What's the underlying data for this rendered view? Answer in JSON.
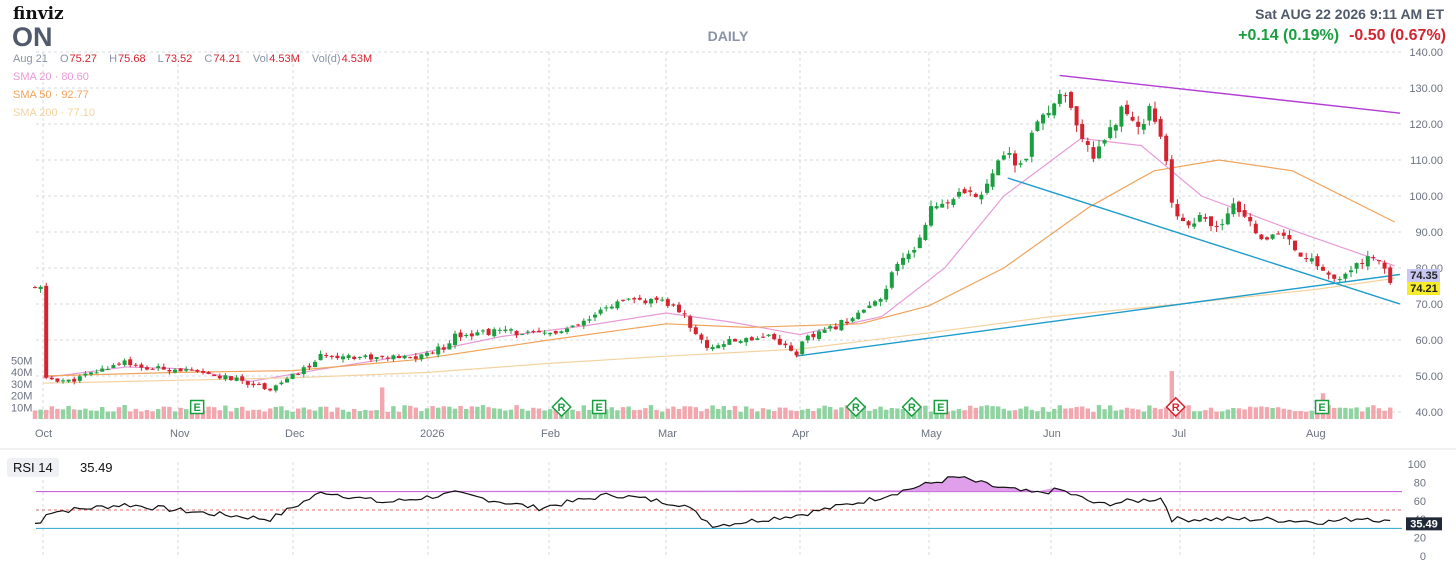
{
  "header": {
    "logo": "finviz",
    "ticker": "ON",
    "period": "DAILY",
    "datetime": "Sat AUG 22 2026 9:11 AM ET",
    "change_1": "+0.14 (0.19%)",
    "change_2": "-0.50 (0.67%)"
  },
  "ohlc": {
    "date": "Aug 21",
    "open_label": "O",
    "open": "75.27",
    "high_label": "H",
    "high": "75.68",
    "low_label": "L",
    "low": "73.52",
    "close_label": "C",
    "close": "74.21",
    "vol_label": "Vol",
    "vol": "4.53M",
    "vold_label": "Vol(d)",
    "vold": "4.53M"
  },
  "sma": [
    {
      "label": "SMA 20",
      "value": "80.60",
      "color": "#e79ad6"
    },
    {
      "label": "SMA 50",
      "value": "92.77",
      "color": "#f0a35a"
    },
    {
      "label": "SMA 200",
      "value": "77.10",
      "color": "#f3d2a0"
    }
  ],
  "colors": {
    "up": "#1a9e3f",
    "down": "#d3242f",
    "vol_up": "#8fd3a0",
    "vol_down": "#f2a7ae",
    "trendline_blue": "#1f9ccc",
    "trendline_purple": "#b33bd6",
    "grid": "#d4d8de",
    "axis_text": "#6b7280",
    "rsi_line": "#111111",
    "rsi_fill": "#d98ee6",
    "price_badge_current": "#f7ec2a",
    "price_badge_other": "#c9c8f5"
  },
  "rsi": {
    "label": "RSI 14",
    "value": "35.49"
  },
  "chart_data": [
    {
      "type": "candlestick",
      "title": "ON",
      "x_tick_labels": [
        "Oct",
        "Nov",
        "Dec",
        "2026",
        "Feb",
        "Mar",
        "Apr",
        "May",
        "Jun",
        "Jul",
        "Aug"
      ],
      "y_tick_labels": [
        "140.00",
        "130.00",
        "120.00",
        "110.00",
        "100.00",
        "90.00",
        "80.00",
        "70.00",
        "60.00",
        "50.00",
        "40.00"
      ],
      "ylim": [
        40,
        140
      ],
      "volume_axis_labels": [
        "50M",
        "40M",
        "30M",
        "20M",
        "10M"
      ],
      "price_badges": [
        "74.35",
        "74.21"
      ],
      "events": [
        {
          "date": "Nov 6",
          "label": "E"
        },
        {
          "date": "Feb 4",
          "label": "R"
        },
        {
          "date": "Feb 13",
          "label": "E"
        },
        {
          "date": "Apr 14",
          "label": "R"
        },
        {
          "date": "Apr 27",
          "label": "R"
        },
        {
          "date": "May 4",
          "label": "E"
        },
        {
          "date": "Jun 30",
          "label": "R"
        },
        {
          "date": "Aug 3",
          "label": "E"
        }
      ],
      "series": [
        {
          "name": "SMA 20",
          "points": [
            [
              "Oct 1",
              49.5
            ],
            [
              "Oct 20",
              52.5
            ],
            [
              "Nov 3",
              52.0
            ],
            [
              "Nov 20",
              48.5
            ],
            [
              "Dec 8",
              52.0
            ],
            [
              "Dec 29",
              56.0
            ],
            [
              "Jan 20",
              61.0
            ],
            [
              "Feb 10",
              64.0
            ],
            [
              "Mar 1",
              67.5
            ],
            [
              "Mar 16",
              65.0
            ],
            [
              "Apr 1",
              61.5
            ],
            [
              "Apr 20",
              66.5
            ],
            [
              "May 5",
              80.0
            ],
            [
              "May 20",
              100.0
            ],
            [
              "Jun 8",
              116.0
            ],
            [
              "Jun 22",
              114.0
            ],
            [
              "Jul 6",
              100.0
            ],
            [
              "Jul 27",
              90.5
            ],
            [
              "Aug 21",
              80.6
            ]
          ]
        },
        {
          "name": "SMA 50",
          "points": [
            [
              "Oct 1",
              50.0
            ],
            [
              "Nov 1",
              51.0
            ],
            [
              "Dec 1",
              51.5
            ],
            [
              "Dec 29",
              54.5
            ],
            [
              "Feb 1",
              60.0
            ],
            [
              "Mar 1",
              64.5
            ],
            [
              "Mar 20",
              63.5
            ],
            [
              "Apr 15",
              64.5
            ],
            [
              "May 1",
              69.5
            ],
            [
              "May 20",
              80.0
            ],
            [
              "Jun 10",
              97.0
            ],
            [
              "Jun 25",
              107.0
            ],
            [
              "Jul 10",
              110.0
            ],
            [
              "Jul 27",
              107.0
            ],
            [
              "Aug 21",
              92.77
            ]
          ]
        },
        {
          "name": "SMA 200",
          "points": [
            [
              "Oct 1",
              48.0
            ],
            [
              "Nov 1",
              48.8
            ],
            [
              "Dec 1",
              49.5
            ],
            [
              "Jan 1",
              51.0
            ],
            [
              "Feb 1",
              53.5
            ],
            [
              "Mar 1",
              55.5
            ],
            [
              "Apr 1",
              57.5
            ],
            [
              "May 1",
              62.0
            ],
            [
              "Jun 1",
              66.5
            ],
            [
              "Jul 1",
              70.0
            ],
            [
              "Aug 1",
              74.0
            ],
            [
              "Aug 21",
              77.1
            ]
          ]
        }
      ],
      "trendlines": [
        {
          "name": "support",
          "from": [
            "Mar 31",
            55.5
          ],
          "to": [
            "Aug 24",
            78.2
          ]
        },
        {
          "name": "channel-lower",
          "from": [
            "May 21",
            105.0
          ],
          "to": [
            "Aug 24",
            70.0
          ]
        },
        {
          "name": "resistance",
          "from": [
            "Jun 3",
            133.5
          ],
          "to": [
            "Aug 24",
            123.0
          ]
        }
      ]
    },
    {
      "type": "line",
      "title": "RSI 14",
      "y_tick_labels": [
        "100",
        "80",
        "60",
        "40",
        "20",
        "0"
      ],
      "ylim": [
        0,
        100
      ],
      "levels": [
        70,
        50,
        30
      ],
      "last_value": 35.49
    }
  ]
}
